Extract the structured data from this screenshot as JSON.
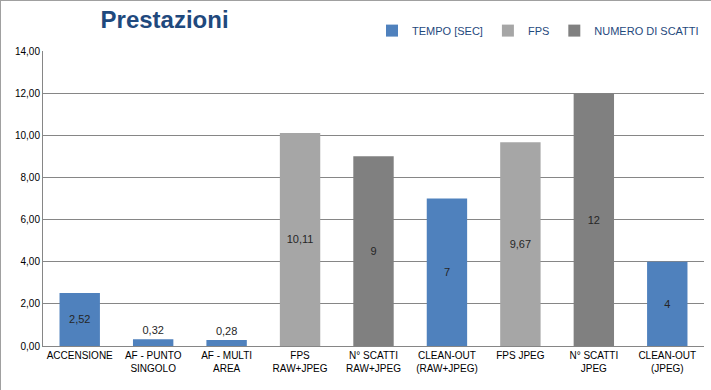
{
  "chart_data": {
    "type": "bar",
    "title": "Prestazioni",
    "categories": [
      "ACCENSIONE",
      "AF - PUNTO\nSINGOLO",
      "AF - MULTI\nAREA",
      "FPS\nRAW+JPEG",
      "N° SCATTI\nRAW+JPEG",
      "CLEAN-OUT\n(RAW+JPEG)",
      "FPS JPEG",
      "N° SCATTI\nJPEG",
      "CLEAN-OUT\n(JPEG)"
    ],
    "series": [
      {
        "name": "TEMPO [SEC]",
        "color": "#4f81bd",
        "values": [
          2.52,
          0.32,
          0.28,
          null,
          null,
          7,
          null,
          null,
          4
        ],
        "value_labels": [
          "2,52",
          "0,32",
          "0,28",
          null,
          null,
          "7",
          null,
          null,
          "4"
        ]
      },
      {
        "name": "FPS",
        "color": "#a6a6a6",
        "values": [
          null,
          null,
          null,
          10.11,
          null,
          null,
          9.67,
          null,
          null
        ],
        "value_labels": [
          null,
          null,
          null,
          "10,11",
          null,
          null,
          "9,67",
          null,
          null
        ]
      },
      {
        "name": "NUMERO DI SCATTI",
        "color": "#808080",
        "values": [
          null,
          null,
          null,
          null,
          9,
          null,
          null,
          12,
          null
        ],
        "value_labels": [
          null,
          null,
          null,
          null,
          "9",
          null,
          null,
          "12",
          null
        ]
      }
    ],
    "ylim": [
      0,
      14
    ],
    "yticks": [
      {
        "value": 0,
        "label": "0,00"
      },
      {
        "value": 2,
        "label": "2,00"
      },
      {
        "value": 4,
        "label": "4,00"
      },
      {
        "value": 6,
        "label": "6,00"
      },
      {
        "value": 8,
        "label": "8,00"
      },
      {
        "value": 10,
        "label": "10,00"
      },
      {
        "value": 12,
        "label": "12,00"
      },
      {
        "value": 14,
        "label": "14,00"
      }
    ],
    "grid": true,
    "legend": "top right",
    "data_labels": true
  }
}
